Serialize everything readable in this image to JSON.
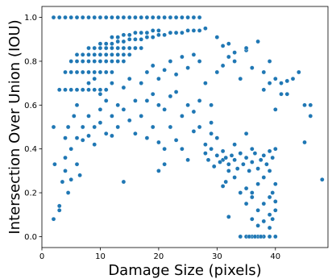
{
  "chart_data": {
    "type": "scatter",
    "title": "",
    "xlabel": "Damage Size (pixels)",
    "ylabel": "Intersection Over Union (IOU)",
    "xlim": [
      0,
      49
    ],
    "ylim": [
      -0.05,
      1.05
    ],
    "xticks": [
      0,
      10,
      20,
      30,
      40
    ],
    "yticks": [
      0.0,
      0.2,
      0.4,
      0.6,
      0.8,
      1.0
    ],
    "grid": false,
    "legend": "none",
    "marker_color": "#1f77b4",
    "series": [
      {
        "points": [
          [
            2,
            1.0
          ],
          [
            3,
            1.0
          ],
          [
            4,
            1.0
          ],
          [
            5,
            1.0
          ],
          [
            6,
            1.0
          ],
          [
            7,
            1.0
          ],
          [
            8,
            1.0
          ],
          [
            9,
            1.0
          ],
          [
            10,
            1.0
          ],
          [
            11,
            1.0
          ],
          [
            12,
            1.0
          ],
          [
            13,
            1.0
          ],
          [
            14,
            1.0
          ],
          [
            15,
            1.0
          ],
          [
            16,
            1.0
          ],
          [
            17,
            1.0
          ],
          [
            18,
            1.0
          ],
          [
            19,
            1.0
          ],
          [
            20,
            1.0
          ],
          [
            21,
            1.0
          ],
          [
            22,
            1.0
          ],
          [
            23,
            1.0
          ],
          [
            24,
            1.0
          ],
          [
            25,
            1.0
          ],
          [
            26,
            1.0
          ],
          [
            27,
            1.0
          ],
          [
            2,
            0.5
          ],
          [
            2.2,
            0.33
          ],
          [
            2,
            0.08
          ],
          [
            3,
            0.12
          ],
          [
            3,
            0.14
          ],
          [
            3.5,
            0.25
          ],
          [
            4,
            0.3
          ],
          [
            4,
            0.36
          ],
          [
            4,
            0.45
          ],
          [
            4.5,
            0.5
          ],
          [
            4.5,
            0.2
          ],
          [
            5,
            0.26
          ],
          [
            5,
            0.4
          ],
          [
            5.5,
            0.55
          ],
          [
            6,
            0.33
          ],
          [
            6,
            0.6
          ],
          [
            6,
            0.45
          ],
          [
            6.5,
            0.28
          ],
          [
            7,
            0.5
          ],
          [
            7,
            0.67
          ],
          [
            3,
            0.67
          ],
          [
            4,
            0.67
          ],
          [
            5,
            0.67
          ],
          [
            6,
            0.67
          ],
          [
            7,
            0.67
          ],
          [
            8,
            0.67
          ],
          [
            9,
            0.67
          ],
          [
            10,
            0.67
          ],
          [
            11,
            0.67
          ],
          [
            4,
            0.75
          ],
          [
            5,
            0.75
          ],
          [
            6,
            0.75
          ],
          [
            7,
            0.75
          ],
          [
            8,
            0.75
          ],
          [
            9,
            0.75
          ],
          [
            10,
            0.75
          ],
          [
            11,
            0.75
          ],
          [
            12,
            0.75
          ],
          [
            5,
            0.8
          ],
          [
            6,
            0.8
          ],
          [
            7,
            0.8
          ],
          [
            8,
            0.8
          ],
          [
            9,
            0.8
          ],
          [
            10,
            0.8
          ],
          [
            11,
            0.8
          ],
          [
            12,
            0.8
          ],
          [
            13,
            0.8
          ],
          [
            14,
            0.8
          ],
          [
            6,
            0.83
          ],
          [
            7,
            0.83
          ],
          [
            8,
            0.83
          ],
          [
            9,
            0.83
          ],
          [
            10,
            0.83
          ],
          [
            11,
            0.83
          ],
          [
            12,
            0.83
          ],
          [
            13,
            0.83
          ],
          [
            14,
            0.83
          ],
          [
            15,
            0.83
          ],
          [
            8,
            0.86
          ],
          [
            9,
            0.86
          ],
          [
            10,
            0.86
          ],
          [
            11,
            0.86
          ],
          [
            12,
            0.86
          ],
          [
            13,
            0.86
          ],
          [
            14,
            0.86
          ],
          [
            15,
            0.86
          ],
          [
            16,
            0.86
          ],
          [
            17,
            0.86
          ],
          [
            10,
            0.88
          ],
          [
            11,
            0.88
          ],
          [
            12,
            0.88
          ],
          [
            13,
            0.89
          ],
          [
            14,
            0.89
          ],
          [
            15,
            0.9
          ],
          [
            16,
            0.9
          ],
          [
            17,
            0.9
          ],
          [
            18,
            0.91
          ],
          [
            19,
            0.91
          ],
          [
            20,
            0.92
          ],
          [
            21,
            0.92
          ],
          [
            22,
            0.93
          ],
          [
            23,
            0.93
          ],
          [
            24,
            0.93
          ],
          [
            25,
            0.94
          ],
          [
            26,
            0.94
          ],
          [
            27,
            0.94
          ],
          [
            28,
            0.95
          ],
          [
            12,
            0.91
          ],
          [
            13,
            0.91
          ],
          [
            14,
            0.92
          ],
          [
            15,
            0.92
          ],
          [
            16,
            0.93
          ],
          [
            17,
            0.93
          ],
          [
            18,
            0.93
          ],
          [
            19,
            0.94
          ],
          [
            20,
            0.94
          ],
          [
            8,
            0.7
          ],
          [
            9,
            0.72
          ],
          [
            10,
            0.65
          ],
          [
            11,
            0.62
          ],
          [
            12,
            0.7
          ],
          [
            13,
            0.6
          ],
          [
            14,
            0.68
          ],
          [
            15,
            0.72
          ],
          [
            16,
            0.62
          ],
          [
            17,
            0.7
          ],
          [
            8,
            0.55
          ],
          [
            9,
            0.5
          ],
          [
            10,
            0.58
          ],
          [
            11,
            0.47
          ],
          [
            12,
            0.55
          ],
          [
            13,
            0.5
          ],
          [
            14,
            0.58
          ],
          [
            15,
            0.53
          ],
          [
            16,
            0.47
          ],
          [
            17,
            0.55
          ],
          [
            7,
            0.44
          ],
          [
            8,
            0.46
          ],
          [
            9,
            0.42
          ],
          [
            10,
            0.52
          ],
          [
            12,
            0.46
          ],
          [
            14,
            0.25
          ],
          [
            18,
            0.45
          ],
          [
            19,
            0.5
          ],
          [
            20,
            0.43
          ],
          [
            21,
            0.4
          ],
          [
            18,
            0.75
          ],
          [
            19,
            0.78
          ],
          [
            20,
            0.72
          ],
          [
            21,
            0.76
          ],
          [
            22,
            0.8
          ],
          [
            23,
            0.74
          ],
          [
            24,
            0.82
          ],
          [
            25,
            0.77
          ],
          [
            26,
            0.83
          ],
          [
            27,
            0.8
          ],
          [
            18,
            0.62
          ],
          [
            19,
            0.65
          ],
          [
            20,
            0.6
          ],
          [
            21,
            0.58
          ],
          [
            22,
            0.64
          ],
          [
            23,
            0.66
          ],
          [
            24,
            0.55
          ],
          [
            25,
            0.6
          ],
          [
            26,
            0.57
          ],
          [
            27,
            0.62
          ],
          [
            20,
            0.3
          ],
          [
            21,
            0.33
          ],
          [
            22,
            0.5
          ],
          [
            23,
            0.44
          ],
          [
            24,
            0.4
          ],
          [
            25,
            0.35
          ],
          [
            26,
            0.48
          ],
          [
            27,
            0.5
          ],
          [
            28,
            0.42
          ],
          [
            29,
            0.52
          ],
          [
            28,
            0.7
          ],
          [
            29,
            0.6
          ],
          [
            30,
            0.75
          ],
          [
            31,
            0.78
          ],
          [
            32,
            0.82
          ],
          [
            33,
            0.8
          ],
          [
            34,
            0.72
          ],
          [
            35,
            0.85
          ],
          [
            36,
            0.77
          ],
          [
            37,
            0.89
          ],
          [
            38,
            0.75
          ],
          [
            39,
            0.8
          ],
          [
            40,
            0.72
          ],
          [
            41,
            0.7
          ],
          [
            42,
            0.65
          ],
          [
            43,
            0.72
          ],
          [
            44,
            0.75
          ],
          [
            45,
            0.6
          ],
          [
            46,
            0.6
          ],
          [
            46,
            0.55
          ],
          [
            30,
            0.91
          ],
          [
            31,
            0.87
          ],
          [
            32,
            0.88
          ],
          [
            33,
            0.84
          ],
          [
            35,
            0.86
          ],
          [
            38,
            0.67
          ],
          [
            39,
            0.7
          ],
          [
            40,
            0.58
          ],
          [
            41,
            0.65
          ],
          [
            42,
            0.71
          ],
          [
            45,
            0.43
          ],
          [
            48,
            0.26
          ],
          [
            29,
            0.47
          ],
          [
            30,
            0.45
          ],
          [
            31,
            0.35
          ],
          [
            32,
            0.3
          ],
          [
            33,
            0.42
          ],
          [
            34,
            0.38
          ],
          [
            35,
            0.47
          ],
          [
            36,
            0.4
          ],
          [
            28,
            0.38
          ],
          [
            28.5,
            0.35
          ],
          [
            29,
            0.4
          ],
          [
            29.5,
            0.32
          ],
          [
            30,
            0.37
          ],
          [
            30.5,
            0.34
          ],
          [
            31,
            0.39
          ],
          [
            31.5,
            0.36
          ],
          [
            32,
            0.33
          ],
          [
            32.5,
            0.37
          ],
          [
            33,
            0.35
          ],
          [
            33.5,
            0.31
          ],
          [
            34,
            0.38
          ],
          [
            34.5,
            0.33
          ],
          [
            35,
            0.36
          ],
          [
            35.5,
            0.3
          ],
          [
            36,
            0.34
          ],
          [
            36.5,
            0.38
          ],
          [
            37,
            0.31
          ],
          [
            37.5,
            0.35
          ],
          [
            38,
            0.37
          ],
          [
            38.5,
            0.33
          ],
          [
            39,
            0.39
          ],
          [
            39.5,
            0.36
          ],
          [
            40,
            0.4
          ],
          [
            39,
            0.3
          ],
          [
            38,
            0.27
          ],
          [
            37,
            0.24
          ],
          [
            36,
            0.2
          ],
          [
            35,
            0.22
          ],
          [
            31,
            0.23
          ],
          [
            31.5,
            0.25
          ],
          [
            32,
            0.09
          ],
          [
            33,
            0.27
          ],
          [
            34,
            0.2
          ],
          [
            35,
            0.15
          ],
          [
            36,
            0.18
          ],
          [
            37,
            0.12
          ],
          [
            38,
            0.15
          ],
          [
            39,
            0.1
          ],
          [
            36,
            0.08
          ],
          [
            37,
            0.05
          ],
          [
            38,
            0.07
          ],
          [
            39,
            0.04
          ],
          [
            39.5,
            0.08
          ],
          [
            40,
            0.12
          ],
          [
            40,
            0.16
          ],
          [
            39.5,
            0.2
          ],
          [
            40,
            0.24
          ],
          [
            39,
            0.18
          ],
          [
            34,
            0.0
          ],
          [
            35,
            0.0
          ],
          [
            36,
            0.0
          ],
          [
            37,
            0.0
          ],
          [
            38,
            0.0
          ],
          [
            39,
            0.0
          ],
          [
            40,
            0.0
          ],
          [
            35.5,
            0.0
          ],
          [
            36.5,
            0.0
          ],
          [
            37.5,
            0.0
          ]
        ]
      }
    ]
  }
}
